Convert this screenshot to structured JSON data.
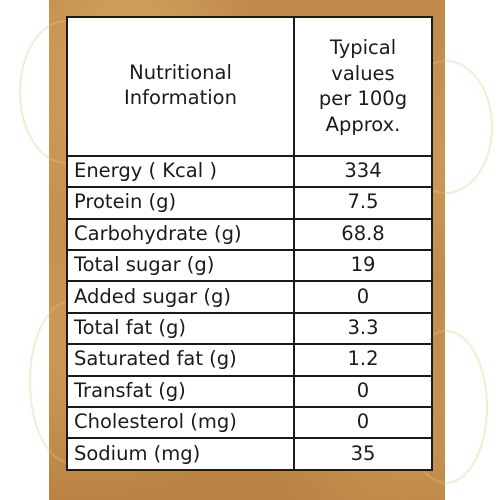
{
  "table": {
    "header_left_line1": "Nutritional",
    "header_left_line2": "Information",
    "header_right_line1": "Typical",
    "header_right_line2": "values",
    "header_right_line3": "per 100g",
    "header_right_line4": "Approx.",
    "rows": [
      {
        "label": "Energy ( Kcal )",
        "value": "334"
      },
      {
        "label": "Protein  (g)",
        "value": "7.5"
      },
      {
        "label": "Carbohydrate (g)",
        "value": "68.8"
      },
      {
        "label": "Total sugar (g)",
        "value": "19"
      },
      {
        "label": "Added sugar (g)",
        "value": "0"
      },
      {
        "label": "Total fat (g)",
        "value": "3.3"
      },
      {
        "label": "Saturated fat (g)",
        "value": "1.2"
      },
      {
        "label": "Transfat (g)",
        "value": "0"
      },
      {
        "label": "Cholesterol (mg)",
        "value": "0"
      },
      {
        "label": "Sodium (mg)",
        "value": "35"
      }
    ]
  },
  "colors": {
    "panel": "#c08b4c",
    "border": "#1b1b1b",
    "text": "#1b1b1b"
  }
}
